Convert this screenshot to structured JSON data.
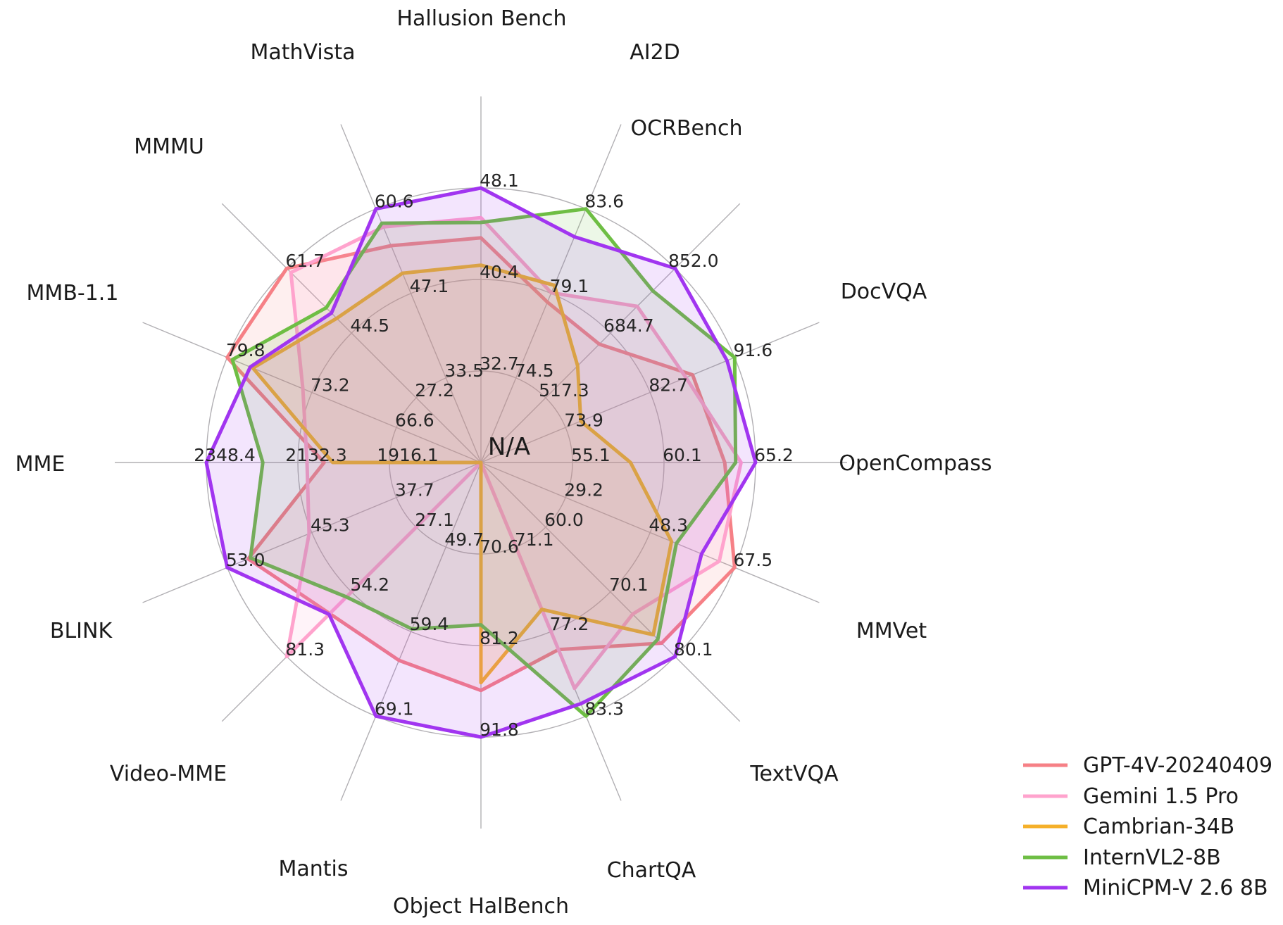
{
  "chart_data": {
    "type": "radar",
    "title": "",
    "center_label": "N/A",
    "grid": true,
    "legend_position": "bottom-right",
    "rings": 3,
    "axes": [
      {
        "label": "Hallusion Bench",
        "ticks": [
          "48.1",
          "40.4",
          "32.7"
        ],
        "max": 48.1,
        "min": 25.0
      },
      {
        "label": "AI2D",
        "ticks": [
          "83.6",
          "79.1",
          "74.5"
        ],
        "max": 83.6,
        "min": 70.0
      },
      {
        "label": "OCRBench",
        "ticks": [
          "852.0",
          "684.7",
          "517.3"
        ],
        "max": 852.0,
        "min": 350.0
      },
      {
        "label": "DocVQA",
        "ticks": [
          "91.6",
          "82.7",
          "73.9"
        ],
        "max": 91.6,
        "min": 65.05
      },
      {
        "label": "OpenCompass",
        "ticks": [
          "65.2",
          "60.1",
          "55.1"
        ],
        "max": 65.2,
        "min": 50.05
      },
      {
        "label": "MMVet",
        "ticks": [
          "67.5",
          "48.3",
          "29.2"
        ],
        "max": 67.5,
        "min": 10.05
      },
      {
        "label": "TextVQA",
        "ticks": [
          "80.1",
          "70.1",
          "60.0"
        ],
        "max": 80.1,
        "min": 49.95
      },
      {
        "label": "ChartQA",
        "ticks": [
          "83.3",
          "77.2",
          "71.1"
        ],
        "max": 83.3,
        "min": 65.0
      },
      {
        "label": "Object HalBench",
        "ticks": [
          "91.8",
          "81.2",
          "70.6"
        ],
        "max": 91.8,
        "min": 60.0
      },
      {
        "label": "Mantis",
        "ticks": [
          "69.1",
          "59.4",
          "49.7"
        ],
        "max": 69.1,
        "min": 40.0
      },
      {
        "label": "Video-MME",
        "ticks": [
          "81.3",
          "54.2",
          "27.1"
        ],
        "max": 81.3,
        "min": 0.0
      },
      {
        "label": "BLINK",
        "ticks": [
          "53.0",
          "45.3",
          "37.7"
        ],
        "max": 53.0,
        "min": 30.05
      },
      {
        "label": "MME",
        "ticks": [
          "2348.4",
          "2132.3",
          "1916.1"
        ],
        "max": 2348.4,
        "min": 1700.0
      },
      {
        "label": "MMB-1.1",
        "ticks": [
          "79.8",
          "73.2",
          "66.6"
        ],
        "max": 79.8,
        "min": 60.0
      },
      {
        "label": "MMMU",
        "ticks": [
          "61.7",
          "44.5",
          "27.2"
        ],
        "max": 61.7,
        "min": 10.0
      },
      {
        "label": "MathVista",
        "ticks": [
          "60.6",
          "47.1",
          "33.5"
        ],
        "max": 60.6,
        "min": 20.0
      }
    ],
    "series": [
      {
        "name": "GPT-4V-20240409",
        "color": "#f68086",
        "values": [
          43.9,
          78.6,
          656.0,
          87.2,
          63.5,
          67.5,
          78.0,
          78.5,
          86.4,
          62.7,
          63.3,
          51.1,
          2070.2,
          79.8,
          61.7,
          54.7
        ]
      },
      {
        "name": "Gemini 1.5 Pro",
        "color": "#ffa3cd",
        "values": [
          45.6,
          79.1,
          754.0,
          86.5,
          64.4,
          64.0,
          73.5,
          81.3,
          null,
          null,
          81.3,
          45.6,
          2110.6,
          73.9,
          60.6,
          57.7
        ]
      },
      {
        "name": "Cambrian-34B",
        "color": "#f5b02a",
        "values": [
          41.6,
          79.5,
          600.0,
          75.5,
          58.3,
          53.2,
          76.7,
          75.6,
          85.5,
          null,
          null,
          null,
          2049.9,
          77.8,
          48.4,
          50.3
        ]
      },
      {
        "name": "InternVL2-8B",
        "color": "#6ebe44",
        "values": [
          45.2,
          83.6,
          794.0,
          91.6,
          64.1,
          54.3,
          77.4,
          83.3,
          78.8,
          59.1,
          56.3,
          50.9,
          2215.1,
          79.4,
          51.2,
          58.3
        ]
      },
      {
        "name": "MiniCPM-V 2.6 8B",
        "color": "#a135f0",
        "values": [
          48.1,
          82.1,
          852.0,
          90.8,
          65.2,
          60.0,
          80.1,
          82.4,
          91.8,
          69.1,
          63.6,
          53.0,
          2348.4,
          78.0,
          49.8,
          60.6
        ]
      }
    ]
  }
}
